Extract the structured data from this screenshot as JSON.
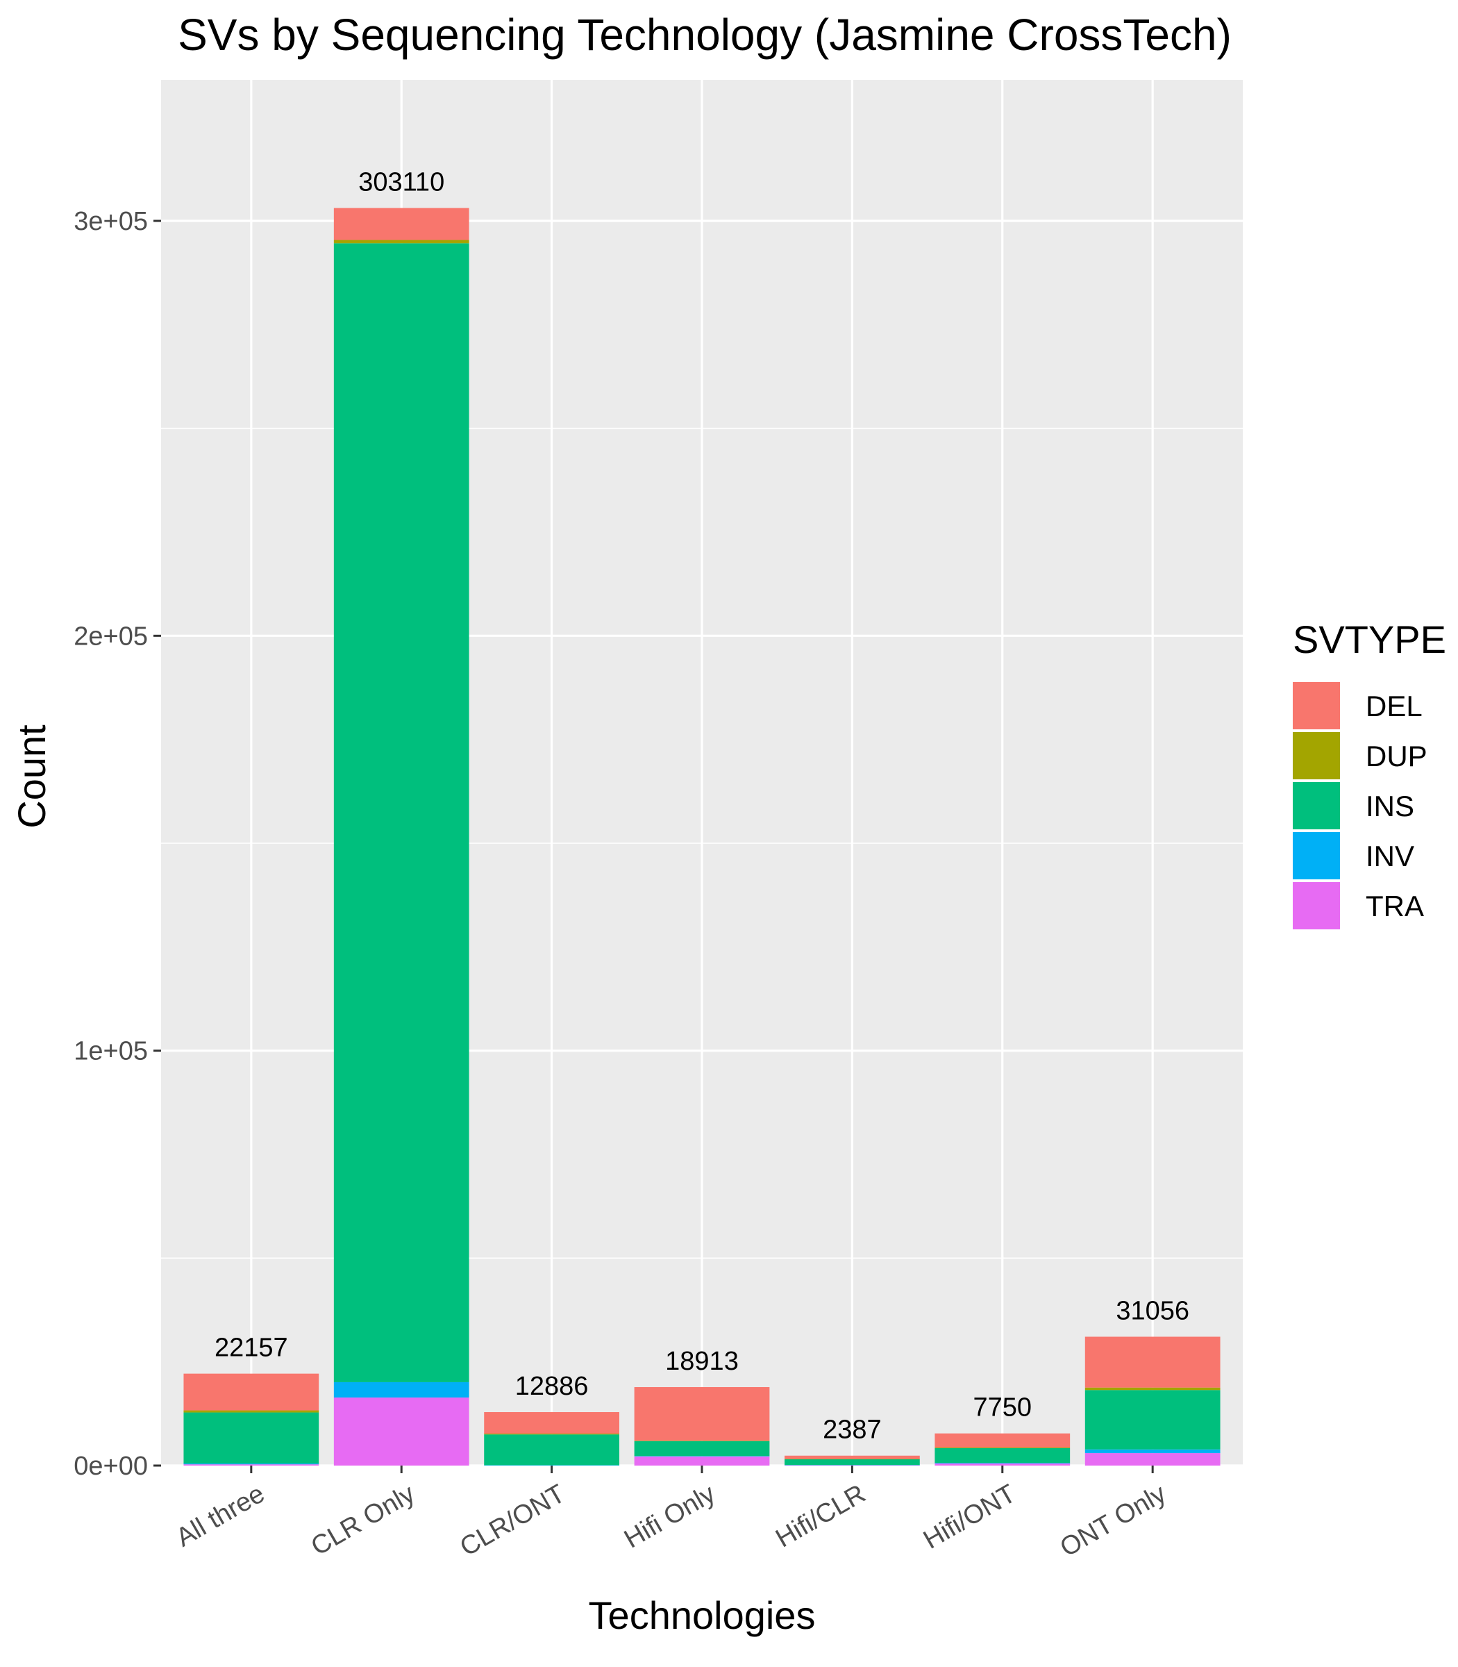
{
  "chart_data": {
    "type": "bar",
    "stacked": true,
    "title": "SVs by Sequencing Technology (Jasmine CrossTech)",
    "xlabel": "Technologies",
    "ylabel": "Count",
    "ylim": [
      0,
      330000
    ],
    "yticks": [
      0,
      100000,
      200000,
      300000
    ],
    "ytick_labels": [
      "0e+00",
      "1e+05",
      "2e+05",
      "3e+05"
    ],
    "categories": [
      "All three",
      "CLR Only",
      "CLR/ONT",
      "Hifi Only",
      "Hifi/CLR",
      "Hifi/ONT",
      "ONT Only"
    ],
    "totals": [
      22157,
      303110,
      12886,
      18913,
      2387,
      7750,
      31056
    ],
    "total_labels": [
      "22157",
      "303110",
      "12886",
      "18913",
      "2387",
      "7750",
      "31056"
    ],
    "series": [
      {
        "name": "TRA",
        "color": "#E76BF3",
        "values": [
          300,
          16400,
          0,
          2200,
          100,
          500,
          3000
        ]
      },
      {
        "name": "INV",
        "color": "#00B0F6",
        "values": [
          200,
          3700,
          100,
          100,
          50,
          150,
          900
        ]
      },
      {
        "name": "INS",
        "color": "#00BF7D",
        "values": [
          12300,
          274500,
          7400,
          3600,
          1400,
          3550,
          14300
        ]
      },
      {
        "name": "DUP",
        "color": "#A3A500",
        "values": [
          500,
          800,
          200,
          100,
          37,
          150,
          600
        ]
      },
      {
        "name": "DEL",
        "color": "#F8766D",
        "values": [
          8857,
          7710,
          5186,
          12913,
          800,
          3400,
          12256
        ]
      }
    ],
    "legend": {
      "title": "SVTYPE",
      "position": "right",
      "items": [
        {
          "label": "DEL",
          "color": "#F8766D"
        },
        {
          "label": "DUP",
          "color": "#A3A500"
        },
        {
          "label": "INS",
          "color": "#00BF7D"
        },
        {
          "label": "INV",
          "color": "#00B0F6"
        },
        {
          "label": "TRA",
          "color": "#E76BF3"
        }
      ]
    },
    "panel_background": "#EBEBEB",
    "grid": true
  }
}
